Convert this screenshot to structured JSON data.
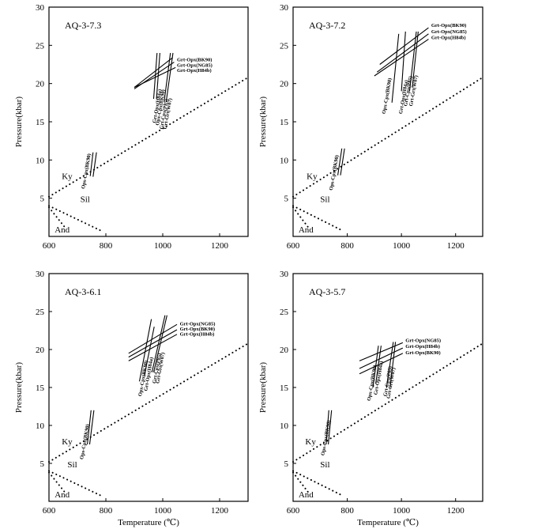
{
  "figure": {
    "xlabel": "Temperature (℃)",
    "ylabel": "Pressure(kbar)"
  },
  "chart_data": [
    {
      "type": "line",
      "title": "AQ-3-7.3",
      "xlim": [
        600,
        1300
      ],
      "ylim": [
        0,
        30
      ],
      "xticks": [
        600,
        800,
        1000,
        1200
      ],
      "yticks": [
        5,
        10,
        15,
        20,
        25,
        30
      ],
      "xlabel": "",
      "ylabel": "Pressure(kbar)",
      "phase_boundaries": [
        {
          "name": "Ky-Sil",
          "style": "dotted",
          "points": [
            [
              600,
              5.2
            ],
            [
              1300,
              20.8
            ]
          ]
        },
        {
          "name": "Sil-And",
          "style": "dotted",
          "points": [
            [
              600,
              4.0
            ],
            [
              780,
              0.8
            ]
          ]
        },
        {
          "name": "Ky-And",
          "style": "dotted",
          "points": [
            [
              600,
              3.8
            ],
            [
              660,
              1.0
            ]
          ]
        }
      ],
      "field_labels": [
        {
          "text": "Ky",
          "x": 645,
          "y": 7.5
        },
        {
          "text": "Sil",
          "x": 710,
          "y": 4.5
        },
        {
          "text": "And",
          "x": 620,
          "y": 0.5
        }
      ],
      "series": [
        {
          "name": "Ops-Cpx(BK90)",
          "label_at": [
            725,
            6.2
          ],
          "points": [
            [
              745,
              7.9
            ],
            [
              755,
              11
            ]
          ]
        },
        {
          "name": "",
          "points": [
            [
              755,
              7.8
            ],
            [
              767,
              11
            ]
          ]
        },
        {
          "name": "Grt-Opx(BK90)",
          "label_at": [
            1050,
            22.9
          ],
          "points": [
            [
              900,
              19.5
            ],
            [
              1035,
              23.4
            ]
          ]
        },
        {
          "name": "Grt-Opx(NG85)",
          "label_at": [
            1050,
            22.2
          ],
          "points": [
            [
              900,
              19.3
            ],
            [
              1040,
              22.8
            ]
          ]
        },
        {
          "name": "Grt-Opx(H84b)",
          "label_at": [
            1050,
            21.5
          ],
          "points": [
            [
              900,
              19.5
            ],
            [
              1045,
              22.1
            ]
          ]
        },
        {
          "name": "Grt-Opx(H84a)",
          "label_at": [
            975,
            14.8
          ],
          "points": [
            [
              968,
              18
            ],
            [
              980,
              24
            ]
          ]
        },
        {
          "name": "Opx-Cpx(BK90)",
          "label_at": [
            986,
            14.5
          ],
          "points": [
            [
              978,
              18
            ],
            [
              990,
              24
            ]
          ]
        },
        {
          "name": "Grt-Cpx(P85)",
          "label_at": [
            1000,
            14.0
          ],
          "points": [
            [
              1005,
              17.6
            ],
            [
              1027,
              24
            ]
          ]
        },
        {
          "name": "Grt-Grt(W07)",
          "label_at": [
            1013,
            14.0
          ],
          "points": [
            [
              1012,
              17.6
            ],
            [
              1036,
              24
            ]
          ]
        }
      ]
    },
    {
      "type": "line",
      "title": "AQ-3-7.2",
      "xlim": [
        600,
        1300
      ],
      "ylim": [
        0,
        30
      ],
      "xticks": [
        600,
        800,
        1000,
        1200
      ],
      "yticks": [
        5,
        10,
        15,
        20,
        25,
        30
      ],
      "xlabel": "",
      "ylabel": "Pressure(kbar)",
      "phase_boundaries": [
        {
          "name": "Ky-Sil",
          "style": "dotted",
          "points": [
            [
              600,
              5.2
            ],
            [
              1300,
              20.8
            ]
          ]
        },
        {
          "name": "Sil-And",
          "style": "dotted",
          "points": [
            [
              600,
              4.0
            ],
            [
              780,
              0.8
            ]
          ]
        },
        {
          "name": "Ky-And",
          "style": "dotted",
          "points": [
            [
              600,
              3.8
            ],
            [
              660,
              1.0
            ]
          ]
        }
      ],
      "field_labels": [
        {
          "text": "Ky",
          "x": 650,
          "y": 7.5
        },
        {
          "text": "Sil",
          "x": 700,
          "y": 4.5
        },
        {
          "text": "And",
          "x": 620,
          "y": 0.5
        }
      ],
      "series": [
        {
          "name": "Ops-Cpx(BK90)",
          "label_at": [
            745,
            6.0
          ],
          "points": [
            [
              765,
              8.0
            ],
            [
              780,
              11.5
            ]
          ]
        },
        {
          "name": "",
          "points": [
            [
              775,
              8.0
            ],
            [
              790,
              11.5
            ]
          ]
        },
        {
          "name": "Grt-Opx(BK90)",
          "label_at": [
            1110,
            27.4
          ],
          "points": [
            [
              920,
              22.5
            ],
            [
              1100,
              27.3
            ]
          ]
        },
        {
          "name": "Grt-Opx(NG85)",
          "label_at": [
            1110,
            26.6
          ],
          "points": [
            [
              910,
              21.5
            ],
            [
              1100,
              26.5
            ]
          ]
        },
        {
          "name": "Grt-Opx(H84b)",
          "label_at": [
            1110,
            25.8
          ],
          "points": [
            [
              900,
              21.0
            ],
            [
              1100,
              25.8
            ]
          ]
        },
        {
          "name": "Opx-Cpx(BK90)",
          "label_at": [
            940,
            16.0
          ],
          "points": [
            [
              965,
              17.5
            ],
            [
              990,
              26.5
            ]
          ]
        },
        {
          "name": "Grt-Opx(H84a)",
          "label_at": [
            1002,
            16.0
          ],
          "points": [
            [
              1000,
              19.0
            ],
            [
              1015,
              26.8
            ]
          ]
        },
        {
          "name": "Grt-Cpx(P85)",
          "label_at": [
            1020,
            17.0
          ],
          "points": [
            [
              1030,
              19.0
            ],
            [
              1055,
              26.8
            ]
          ]
        },
        {
          "name": "Grt-Grt(W07)",
          "label_at": [
            1040,
            17.0
          ],
          "points": [
            [
              1040,
              19.5
            ],
            [
              1062,
              26.8
            ]
          ]
        }
      ]
    },
    {
      "type": "line",
      "title": "AQ-3-6.1",
      "xlim": [
        600,
        1300
      ],
      "ylim": [
        0,
        30
      ],
      "xticks": [
        600,
        800,
        1000,
        1200
      ],
      "yticks": [
        5,
        10,
        15,
        20,
        25,
        30
      ],
      "xlabel": "Temperature (℃)",
      "ylabel": "Pressure(kbar)",
      "phase_boundaries": [
        {
          "name": "Ky-Sil",
          "style": "dotted",
          "points": [
            [
              600,
              5.2
            ],
            [
              1300,
              20.8
            ]
          ]
        },
        {
          "name": "Sil-And",
          "style": "dotted",
          "points": [
            [
              600,
              4.0
            ],
            [
              780,
              0.8
            ]
          ]
        },
        {
          "name": "Ky-And",
          "style": "dotted",
          "points": [
            [
              600,
              3.8
            ],
            [
              660,
              1.0
            ]
          ]
        }
      ],
      "field_labels": [
        {
          "text": "Ky",
          "x": 645,
          "y": 7.5
        },
        {
          "text": "Sil",
          "x": 665,
          "y": 4.5
        },
        {
          "text": "And",
          "x": 620,
          "y": 0.5
        }
      ],
      "series": [
        {
          "name": "Ops-Cpx(BK90)",
          "label_at": [
            720,
            5.5
          ],
          "points": [
            [
              735,
              7.5
            ],
            [
              748,
              12
            ]
          ]
        },
        {
          "name": "",
          "points": [
            [
              743,
              7.5
            ],
            [
              758,
              12
            ]
          ]
        },
        {
          "name": "Grt-Opx(NG85)",
          "label_at": [
            1060,
            23.2
          ],
          "points": [
            [
              880,
              19.5
            ],
            [
              1050,
              23.3
            ]
          ]
        },
        {
          "name": "Grt-Opx(BK90)",
          "label_at": [
            1060,
            22.5
          ],
          "points": [
            [
              880,
              19.0
            ],
            [
              1050,
              22.6
            ]
          ]
        },
        {
          "name": "Grt-Opx(H84b)",
          "label_at": [
            1060,
            21.8
          ],
          "points": [
            [
              880,
              18.5
            ],
            [
              1050,
              22.0
            ]
          ]
        },
        {
          "name": "Opx-Cpx(BK90)",
          "label_at": [
            925,
            13.8
          ],
          "points": [
            [
              918,
              15.8
            ],
            [
              960,
              24
            ]
          ]
        },
        {
          "name": "Grt-Opx(H84a)",
          "label_at": [
            945,
            14.5
          ],
          "points": [
            [
              935,
              16.5
            ],
            [
              970,
              23
            ]
          ]
        },
        {
          "name": "Grt-Cpx(P85)",
          "label_at": [
            975,
            15.5
          ],
          "points": [
            [
              962,
              17.0
            ],
            [
              1008,
              24.5
            ]
          ]
        },
        {
          "name": "Grt-Grt(W07)",
          "label_at": [
            987,
            15.5
          ],
          "points": [
            [
              968,
              17.0
            ],
            [
              1015,
              24.5
            ]
          ]
        }
      ]
    },
    {
      "type": "line",
      "title": "AQ-3-5.7",
      "xlim": [
        600,
        1300
      ],
      "ylim": [
        0,
        30
      ],
      "xticks": [
        600,
        800,
        1000,
        1200
      ],
      "yticks": [
        5,
        10,
        15,
        20,
        25,
        30
      ],
      "xlabel": "Temperature (℃)",
      "ylabel": "Pressure(kbar)",
      "phase_boundaries": [
        {
          "name": "Ky-Sil",
          "style": "dotted",
          "points": [
            [
              600,
              5.2
            ],
            [
              1300,
              20.8
            ]
          ]
        },
        {
          "name": "Sil-And",
          "style": "dotted",
          "points": [
            [
              600,
              4.0
            ],
            [
              780,
              0.8
            ]
          ]
        },
        {
          "name": "Ky-And",
          "style": "dotted",
          "points": [
            [
              600,
              3.8
            ],
            [
              660,
              1.0
            ]
          ]
        }
      ],
      "field_labels": [
        {
          "text": "Ky",
          "x": 645,
          "y": 7.5
        },
        {
          "text": "Sil",
          "x": 700,
          "y": 4.5
        },
        {
          "text": "And",
          "x": 620,
          "y": 0.5
        }
      ],
      "series": [
        {
          "name": "Ops-Cpx(BK90)",
          "label_at": [
            715,
            6.0
          ],
          "points": [
            [
              722,
              7.5
            ],
            [
              732,
              12
            ]
          ]
        },
        {
          "name": "",
          "points": [
            [
              730,
              7.5
            ],
            [
              742,
              12
            ]
          ]
        },
        {
          "name": "Grt-Opx(NG85)",
          "label_at": [
            1015,
            21.0
          ],
          "points": [
            [
              845,
              18.5
            ],
            [
              1005,
              20.9
            ]
          ]
        },
        {
          "name": "Grt-Opx(H84b)",
          "label_at": [
            1015,
            20.2
          ],
          "points": [
            [
              845,
              17.5
            ],
            [
              1005,
              20.2
            ]
          ]
        },
        {
          "name": "Grt-Opx(BK90)",
          "label_at": [
            1015,
            19.4
          ],
          "points": [
            [
              845,
              16.8
            ],
            [
              1005,
              19.5
            ]
          ]
        },
        {
          "name": "Opx-Cpx(BK90)",
          "label_at": [
            885,
            13.2
          ],
          "points": [
            [
              895,
              15.0
            ],
            [
              915,
              20.5
            ]
          ]
        },
        {
          "name": "Grt-Opx(H84a)",
          "label_at": [
            910,
            14.0
          ],
          "points": [
            [
              905,
              15.5
            ],
            [
              925,
              20.5
            ]
          ]
        },
        {
          "name": "Grt-Cpx(P85)",
          "label_at": [
            945,
            13.8
          ],
          "points": [
            [
              945,
              15.0
            ],
            [
              970,
              21
            ]
          ]
        },
        {
          "name": "Grt-Grt(W07)",
          "label_at": [
            957,
            13.5
          ],
          "points": [
            [
              958,
              15.0
            ],
            [
              978,
              21
            ]
          ]
        }
      ]
    }
  ]
}
